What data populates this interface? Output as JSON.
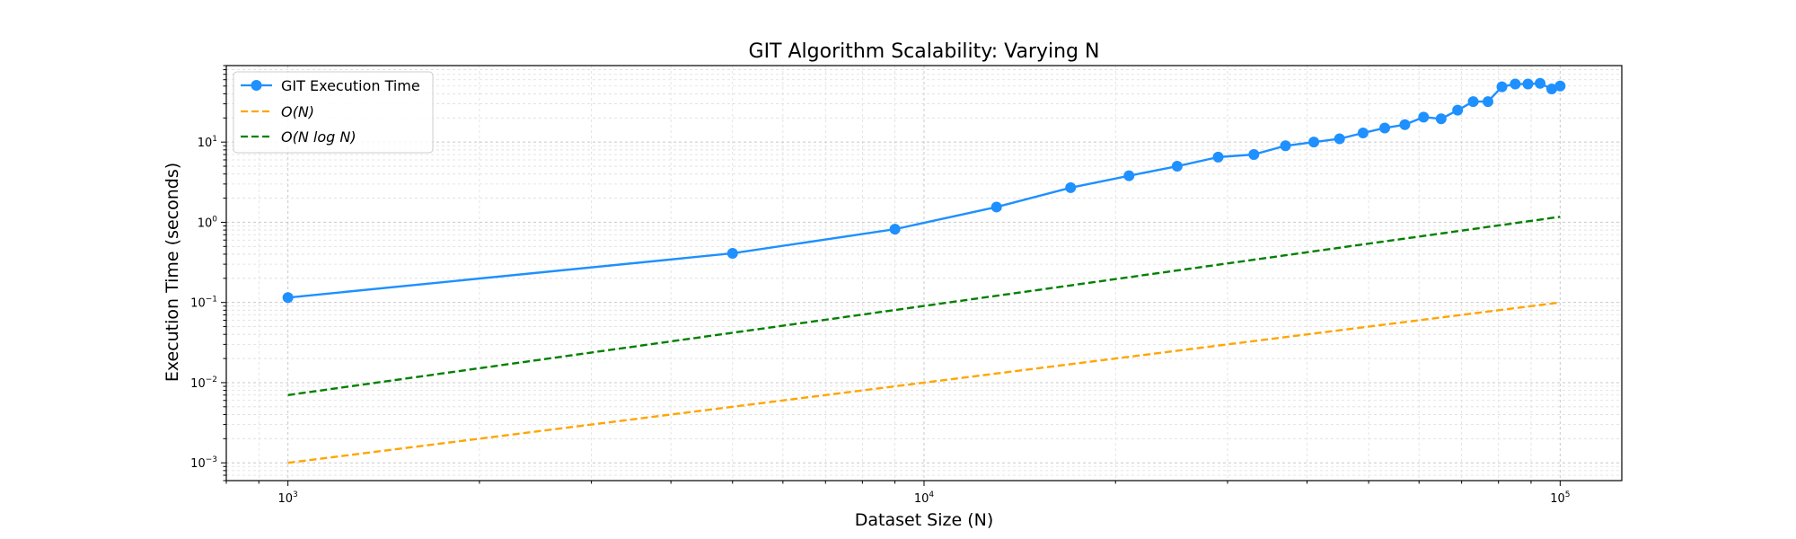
{
  "chart_data": {
    "type": "line",
    "title": "GIT Algorithm Scalability: Varying N",
    "xlabel": "Dataset Size (N)",
    "ylabel": "Execution Time (seconds)",
    "xscale": "log",
    "yscale": "log",
    "xlim": [
      800,
      125000
    ],
    "ylim": [
      0.0006,
      90
    ],
    "grid": "on (major and minor)",
    "legend_position": "top-left",
    "x_ticks": [
      {
        "value": 1000,
        "base": "10",
        "exp": "3"
      },
      {
        "value": 10000,
        "base": "10",
        "exp": "4"
      },
      {
        "value": 100000,
        "base": "10",
        "exp": "5"
      }
    ],
    "y_ticks": [
      {
        "value": 0.001,
        "base": "10",
        "exp": "−3"
      },
      {
        "value": 0.01,
        "base": "10",
        "exp": "−2"
      },
      {
        "value": 0.1,
        "base": "10",
        "exp": "−1"
      },
      {
        "value": 1,
        "base": "10",
        "exp": "0"
      },
      {
        "value": 10,
        "base": "10",
        "exp": "1"
      }
    ],
    "series": [
      {
        "name": "GIT Execution Time",
        "color": "#1e90ff",
        "style": "solid-markers",
        "x": [
          1000,
          5000,
          9000,
          13000,
          17000,
          21000,
          25000,
          29000,
          33000,
          37000,
          41000,
          45000,
          49000,
          53000,
          57000,
          61000,
          65000,
          69000,
          73000,
          77000,
          81000,
          85000,
          89000,
          93000,
          97000,
          100000
        ],
        "y": [
          0.115,
          0.41,
          0.82,
          1.55,
          2.7,
          3.8,
          5.0,
          6.5,
          7.0,
          9.0,
          10.0,
          11.0,
          13.0,
          15.0,
          16.5,
          20.5,
          19.5,
          25.0,
          32.0,
          32.0,
          49.0,
          53.0,
          53.0,
          54.0,
          46.0,
          50.0
        ]
      },
      {
        "name": "O(N)",
        "color": "#ffa500",
        "style": "dashed",
        "x": [
          1000,
          100000
        ],
        "y": [
          0.001,
          0.1
        ]
      },
      {
        "name": "O(N log N)",
        "color": "#008000",
        "style": "dashed",
        "x": [
          1000,
          100000
        ],
        "y": [
          0.007,
          1.17
        ]
      }
    ]
  }
}
